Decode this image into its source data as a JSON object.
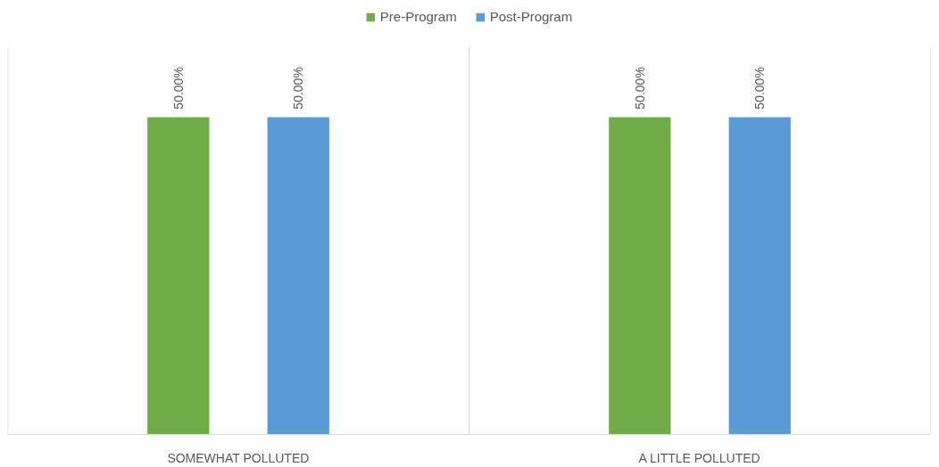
{
  "chart_data": {
    "type": "bar",
    "categories": [
      "SOMEWHAT POLLUTED",
      "A LITTLE POLLUTED"
    ],
    "series": [
      {
        "name": "Pre-Program",
        "color": "#70ad47",
        "values": [
          50,
          50
        ],
        "value_labels": [
          "50.00%",
          "50.00%"
        ]
      },
      {
        "name": "Post-Program",
        "color": "#5b9bd5",
        "values": [
          50,
          50
        ],
        "value_labels": [
          "50.00%",
          "50.00%"
        ]
      }
    ],
    "legend": "top"
  }
}
